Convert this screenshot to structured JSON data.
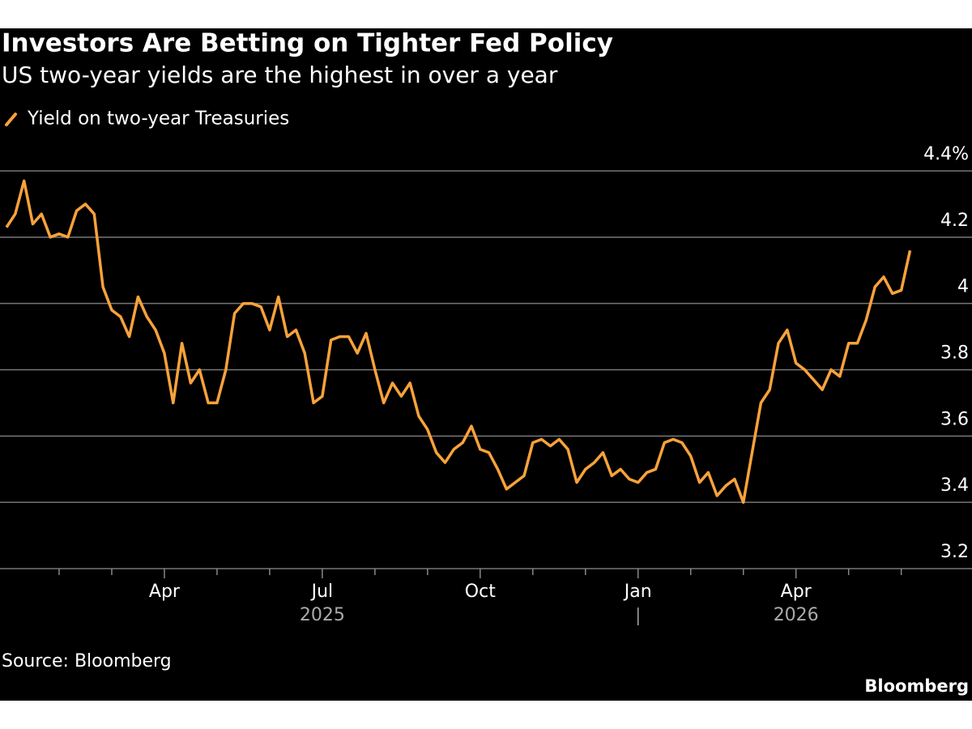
{
  "chart_data": {
    "type": "line",
    "title": "Investors Are Betting on Tighter Fed Policy",
    "subtitle": "US two-year yields are the highest in over a year",
    "source": "Source: Bloomberg",
    "brand": "Bloomberg",
    "categories": [
      null,
      null,
      null,
      null,
      null,
      null,
      null,
      null,
      null,
      null,
      null,
      null,
      null,
      null,
      null,
      null,
      null,
      null,
      "Apr",
      null,
      null,
      null,
      null,
      null,
      null,
      null,
      null,
      null,
      null,
      null,
      null,
      null,
      null,
      null,
      null,
      null,
      "Jul",
      null,
      null,
      null,
      null,
      null,
      null,
      null,
      null,
      null,
      null,
      null,
      null,
      null,
      null,
      null,
      null,
      null,
      "Oct",
      null,
      null,
      null,
      null,
      null,
      null,
      null,
      null,
      null,
      null,
      null,
      null,
      null,
      null,
      null,
      null,
      null,
      "Jan",
      null,
      null,
      null,
      null,
      null,
      null,
      null,
      null,
      null,
      null,
      null,
      null,
      null,
      null,
      null,
      null,
      null,
      "Apr",
      null,
      null,
      null,
      null,
      null,
      null,
      null,
      null,
      null,
      null,
      null,
      null,
      null
    ],
    "category_years": [
      null,
      null,
      null,
      null,
      null,
      null,
      null,
      null,
      null,
      null,
      null,
      null,
      null,
      null,
      null,
      null,
      null,
      null,
      null,
      null,
      null,
      null,
      null,
      null,
      null,
      null,
      null,
      null,
      null,
      null,
      null,
      null,
      null,
      null,
      null,
      null,
      "2025",
      null,
      null,
      null,
      null,
      null,
      null,
      null,
      null,
      null,
      null,
      null,
      null,
      null,
      null,
      null,
      null,
      null,
      null,
      null,
      null,
      null,
      null,
      null,
      null,
      null,
      null,
      null,
      null,
      null,
      null,
      null,
      null,
      null,
      null,
      null,
      null,
      null,
      null,
      null,
      null,
      null,
      null,
      null,
      null,
      null,
      null,
      null,
      null,
      null,
      null,
      null,
      null,
      null,
      "2026",
      null,
      null,
      null,
      null,
      null,
      null,
      null,
      null,
      null,
      null,
      null,
      null,
      null
    ],
    "series": [
      {
        "name": "Yield on two-year Treasuries",
        "color": "#f9a23b",
        "values": [
          4.23,
          4.27,
          4.37,
          4.24,
          4.27,
          4.2,
          4.21,
          4.2,
          4.28,
          4.3,
          4.27,
          4.05,
          3.98,
          3.96,
          3.9,
          4.02,
          3.96,
          3.92,
          3.85,
          3.7,
          3.88,
          3.76,
          3.8,
          3.7,
          3.7,
          3.8,
          3.97,
          4.0,
          4.0,
          3.99,
          3.92,
          4.02,
          3.9,
          3.92,
          3.85,
          3.7,
          3.72,
          3.89,
          3.9,
          3.9,
          3.85,
          3.91,
          3.8,
          3.7,
          3.76,
          3.72,
          3.76,
          3.66,
          3.62,
          3.55,
          3.52,
          3.56,
          3.58,
          3.63,
          3.56,
          3.55,
          3.5,
          3.44,
          3.46,
          3.48,
          3.58,
          3.59,
          3.57,
          3.59,
          3.56,
          3.46,
          3.5,
          3.52,
          3.55,
          3.48,
          3.5,
          3.47,
          3.46,
          3.49,
          3.5,
          3.58,
          3.59,
          3.58,
          3.54,
          3.46,
          3.49,
          3.42,
          3.45,
          3.47,
          3.4,
          3.55,
          3.7,
          3.74,
          3.88,
          3.92,
          3.82,
          3.8,
          3.77,
          3.74,
          3.8,
          3.78,
          3.88,
          3.88,
          3.95,
          4.05,
          4.08,
          4.03,
          4.04,
          4.16
        ]
      }
    ],
    "ylim": [
      3.2,
      4.4
    ],
    "yticks": [
      3.2,
      3.4,
      3.6,
      3.8,
      4.0,
      {
        "value": 4.4,
        "label": "4.4%"
      },
      4.2
    ],
    "grid": true
  }
}
